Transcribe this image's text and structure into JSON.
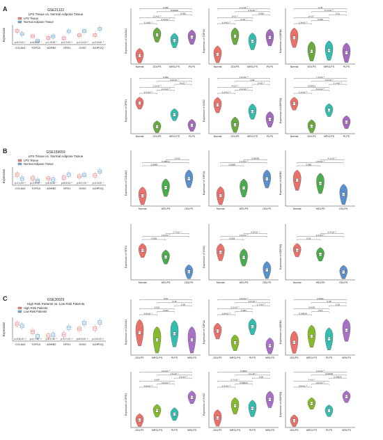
{
  "panels": [
    {
      "letter": "A",
      "dataset": "GSE21122",
      "comparison_title": "LPS Tissue vs. Normal Adipose Tissue",
      "legend": [
        "LPS Tissue",
        "Normal Adipose Tissue"
      ],
      "legend_colors": [
        "#f08080",
        "#6fa8dc"
      ]
    },
    {
      "letter": "B",
      "dataset": "GSE159659",
      "comparison_title": "LPS Tissue vs. Normal Adipose Tissue",
      "legend": [
        "LPS Tissue",
        "Normal Adipose Tissue"
      ],
      "legend_colors": [
        "#f08080",
        "#6fa8dc"
      ]
    },
    {
      "letter": "C",
      "dataset": "GSE30929",
      "comparison_title": "High Risk Patients vs. Low Risk Patients",
      "legend": [
        "High Risk Patients",
        "Low Risk Patients"
      ],
      "legend_colors": [
        "#f08080",
        "#6fa8dc"
      ]
    }
  ],
  "chart_data": [
    {
      "type": "boxplot",
      "panel": "A",
      "ylabel": "Expression",
      "categories": [
        "COL6A1",
        "TOP2A",
        "ADRB2",
        "GPD1",
        "G0S2",
        "ADIPOQ"
      ],
      "pvalues": [
        "p=6.2×10⁻⁴",
        "p=6.3×10⁻⁴",
        "p=1.3×10⁻⁶",
        "p=1.2×10⁻⁵",
        "p=2.1×10⁻⁵",
        "p=2.4×10⁻⁵"
      ],
      "series": [
        {
          "name": "LPS Tissue",
          "medians": [
            11.2,
            8.4,
            7.5,
            7.4,
            8.9,
            9.0
          ]
        },
        {
          "name": "Normal Adipose Tissue",
          "medians": [
            9.6,
            6.0,
            8.3,
            11.0,
            11.1,
            12.3
          ]
        }
      ]
    },
    {
      "type": "violin",
      "panel": "A",
      "ylabel": "Expression of COL6A1",
      "categories": [
        "Normal",
        "DDLPS",
        "MRCLPS",
        "PLPS"
      ],
      "medians": [
        7.2,
        10.9,
        9.9,
        10.5
      ],
      "brackets": [
        "2.1×10⁻⁴",
        "1.4×10⁻⁵",
        "1.1×10⁻⁵",
        "0.025",
        "0.00046",
        "0.006"
      ]
    },
    {
      "type": "violin",
      "panel": "A",
      "ylabel": "Expression of TOP2A",
      "categories": [
        "Normal",
        "DDLPS",
        "MRCLPS",
        "PLPS"
      ],
      "medians": [
        5.6,
        8.4,
        7.6,
        8.2
      ],
      "brackets": [
        "6.3×10⁻⁸",
        "2×10⁻⁷",
        "3×10⁻⁴",
        "0.018",
        "4.3×10⁻⁴",
        "1.1×10⁻⁷"
      ]
    },
    {
      "type": "violin",
      "panel": "A",
      "ylabel": "Expression of ADRB2",
      "categories": [
        "Normal",
        "DDLPS",
        "MRCLPS",
        "PLPS"
      ],
      "medians": [
        8.6,
        6.8,
        6.9,
        6.6
      ],
      "brackets": [
        "1.3×10⁻⁵",
        "0.018",
        "3×10⁻⁷",
        "0.11",
        "8.4×10⁻⁵",
        "0.78"
      ]
    },
    {
      "type": "violin",
      "panel": "A",
      "ylabel": "Expression of GPD1",
      "categories": [
        "Normal",
        "DDLPS",
        "MRCLPS",
        "PLPS"
      ],
      "medians": [
        11.1,
        6.0,
        8.6,
        6.3
      ],
      "brackets": [
        "3.1×10⁻⁶",
        "1.1×10⁻⁵",
        "2.3×10⁻⁵",
        "4×10⁻⁷",
        "6.9×10⁻⁴",
        "0.026"
      ]
    },
    {
      "type": "violin",
      "panel": "A",
      "ylabel": "Expression of G0S2",
      "categories": [
        "Normal",
        "DDLPS",
        "MRCLPS",
        "PLPS"
      ],
      "medians": [
        11.4,
        8.1,
        10.3,
        9.0
      ],
      "brackets": [
        "5.1×10⁻⁸",
        "2.1×10⁻⁴",
        "4×10⁻⁸",
        "2×10⁻⁴",
        "0.04",
        "1.5×10⁻⁵"
      ]
    },
    {
      "type": "violin",
      "panel": "A",
      "ylabel": "Expression of ADIPOQ",
      "categories": [
        "Normal",
        "DDLPS",
        "MRCLPS",
        "PLPS"
      ],
      "medians": [
        12.3,
        7.8,
        11.0,
        8.6
      ],
      "brackets": [
        "3.1×10⁻⁸",
        "8.4×10⁻⁸",
        "0.00031",
        "1.1×10⁻⁴",
        "1.6×10⁻⁶",
        "7.1×10⁻⁸"
      ]
    },
    {
      "type": "boxplot",
      "panel": "B",
      "ylabel": "Expression",
      "categories": [
        "COL6A1",
        "TOP2A",
        "ADRB2",
        "GPD1",
        "G0S2",
        "ADIPOQ"
      ],
      "pvalues": [
        "p=1.1×10⁻⁴",
        "p=2.9×10⁻⁴",
        "p=6.6×10⁻⁴",
        "p=6.6×10⁻⁵",
        "p=8.7×10⁻⁶",
        "p=4.3×10⁻⁴"
      ],
      "series": [
        {
          "name": "LPS Tissue",
          "medians": [
            9.2,
            7.6,
            7.5,
            7.9,
            8.4,
            8.9
          ]
        },
        {
          "name": "Normal Adipose Tissue",
          "medians": [
            7.4,
            6.5,
            7.0,
            9.2,
            9.1,
            10.6
          ]
        }
      ]
    },
    {
      "type": "violin",
      "panel": "B",
      "ylabel": "Expression of COL6A1",
      "categories": [
        "Normal",
        "WDLPS",
        "DDLPS"
      ],
      "medians": [
        7.5,
        8.7,
        10.0
      ],
      "brackets": [
        "0.0048",
        "0.00014",
        "0.015"
      ]
    },
    {
      "type": "violin",
      "panel": "B",
      "ylabel": "Expression of TOP2A",
      "categories": [
        "Normal",
        "WDLPS",
        "DDLPS"
      ],
      "medians": [
        5.6,
        6.7,
        8.0
      ],
      "brackets": [
        "0.0095",
        "1.1×10⁻⁵",
        "0.00038"
      ]
    },
    {
      "type": "violin",
      "panel": "B",
      "ylabel": "Expression of ADRB2",
      "categories": [
        "Normal",
        "WDLPS",
        "DDLPS"
      ],
      "medians": [
        6.9,
        6.5,
        5.1
      ],
      "brackets": [
        "0.086",
        "1.9×10⁻⁵",
        "4.3×10⁻⁵"
      ]
    },
    {
      "type": "violin",
      "panel": "B",
      "ylabel": "Expression of GPD1",
      "categories": [
        "Normal",
        "WDLPS",
        "DDLPS"
      ],
      "medians": [
        9.9,
        8.7,
        6.0
      ],
      "brackets": [
        "0.026",
        "1.9×10⁻⁵",
        "2.7×10⁻⁵"
      ]
    },
    {
      "type": "violin",
      "panel": "B",
      "ylabel": "Expression of G0S2",
      "categories": [
        "Normal",
        "WDLPS",
        "DDLPS"
      ],
      "medians": [
        9.6,
        8.8,
        6.9
      ],
      "brackets": [
        "0.033",
        "1.9×10⁻⁵",
        "6.9×10⁻⁴"
      ]
    },
    {
      "type": "violin",
      "panel": "B",
      "ylabel": "Expression of ADIPOQ",
      "categories": [
        "Normal",
        "WDLPS",
        "DDLPS"
      ],
      "medians": [
        10.6,
        9.8,
        6.4
      ],
      "brackets": [
        "0.22",
        "2.3×10⁻⁵",
        "3.4×10⁻⁵"
      ]
    },
    {
      "type": "boxplot",
      "panel": "C",
      "ylabel": "Expression",
      "categories": [
        "COL6A1",
        "TOP2A",
        "ADRB2",
        "GPD1",
        "G0S2",
        "ADIPOQ"
      ],
      "pvalues": [
        "p=5.6×10⁻¹⁰",
        "p=4.7×10⁻¹⁰",
        "p=3.1×10⁻⁶",
        "p=9.7×10⁻¹⁰",
        "p=6.9×10⁻¹⁰",
        "p=2.0×10⁻¹⁰"
      ],
      "series": [
        {
          "name": "High Risk Patients",
          "medians": [
            10.9,
            7.7,
            6.1,
            6.6,
            8.9,
            9.1
          ]
        },
        {
          "name": "Low Risk Patients",
          "medians": [
            10.1,
            5.9,
            6.4,
            9.4,
            11.3,
            11.6
          ]
        }
      ]
    },
    {
      "type": "violin",
      "panel": "C",
      "ylabel": "Expression of COL6A1",
      "categories": [
        "DDLPS",
        "MRCLPS",
        "PLPS",
        "WDLPS"
      ],
      "medians": [
        10.7,
        10.0,
        10.6,
        10.0
      ],
      "brackets": [
        "6.5×10⁻⁴",
        "0.013",
        "0.023",
        "0.28",
        "0.43",
        "0.34"
      ]
    },
    {
      "type": "violin",
      "panel": "C",
      "ylabel": "Expression of TOP2A",
      "categories": [
        "DDLPS",
        "MRCLPS",
        "PLPS",
        "WDLPS"
      ],
      "medians": [
        8.0,
        6.1,
        8.7,
        5.6
      ],
      "brackets": [
        "2.8×10⁻⁵",
        "0.004",
        "3.2×10⁻⁸",
        "1.7×10⁻⁵",
        "1.2×10⁻⁴",
        "1.6×10⁻⁵"
      ]
    },
    {
      "type": "violin",
      "panel": "C",
      "ylabel": "Expression of ADRB2",
      "categories": [
        "DDLPS",
        "MRCLPS",
        "PLPS",
        "WDLPS"
      ],
      "medians": [
        6.2,
        6.9,
        6.6,
        7.6
      ],
      "brackets": [
        "0.00026",
        "0.13",
        "0.0039",
        "0.15",
        "0.28",
        "0.0032"
      ]
    },
    {
      "type": "violin",
      "panel": "C",
      "ylabel": "Expression of GPD1",
      "categories": [
        "DDLPS",
        "MRCLPS",
        "PLPS",
        "WDLPS"
      ],
      "medians": [
        5.6,
        7.5,
        6.8,
        10.2
      ],
      "brackets": [
        "6.8×10⁻⁵",
        "3.4×10⁻⁵",
        "0.047",
        "2.6×10⁻⁵",
        "1.5×10⁻⁵",
        "3.4×10⁻⁸"
      ]
    },
    {
      "type": "violin",
      "panel": "C",
      "ylabel": "Expression of G0S2",
      "categories": [
        "DDLPS",
        "MRCLPS",
        "PLPS",
        "WDLPS"
      ],
      "medians": [
        8.2,
        10.1,
        9.7,
        11.1
      ],
      "brackets": [
        "2.3×10⁻⁵",
        "0.00019",
        "2.7×10⁻⁴",
        "0.28",
        "1.1×10⁻⁴",
        "0.0022"
      ]
    },
    {
      "type": "violin",
      "panel": "C",
      "ylabel": "Expression of ADIPOQ",
      "categories": [
        "DDLPS",
        "MRCLPS",
        "PLPS",
        "WDLPS"
      ],
      "medians": [
        7.2,
        11.0,
        9.4,
        12.5
      ],
      "brackets": [
        "3.8×10⁻⁵",
        "2.8×10⁻⁵",
        "7×10⁻⁴",
        "0.00025",
        "0.00038",
        "1.2×10⁻⁸"
      ]
    }
  ]
}
